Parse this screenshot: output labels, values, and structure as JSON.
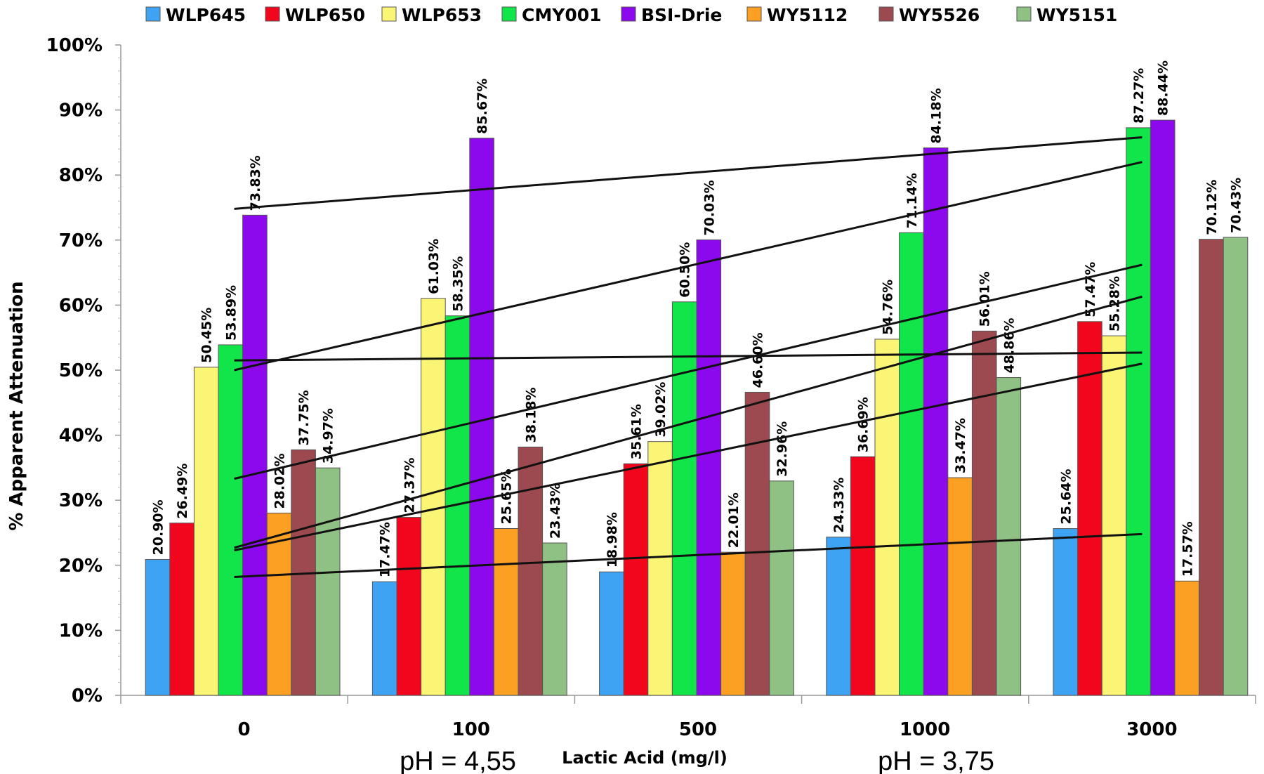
{
  "chart_data": {
    "type": "bar",
    "xlabel": "Lactic Acid (mg/l)",
    "ylabel": "% Apparent Attenuation",
    "ylim": [
      0,
      100
    ],
    "y_ticks": [
      "0%",
      "10%",
      "20%",
      "30%",
      "40%",
      "50%",
      "60%",
      "70%",
      "80%",
      "90%",
      "100%"
    ],
    "grid": false,
    "legend_position": "top",
    "categories": [
      "0",
      "100",
      "500",
      "1000",
      "3000"
    ],
    "series": [
      {
        "name": "WLP645",
        "color": "#3ea3f3",
        "values": [
          20.9,
          17.47,
          18.98,
          24.33,
          25.64
        ],
        "labels": [
          "20.90%",
          "17.47%",
          "18.98%",
          "24.33%",
          "25.64%"
        ]
      },
      {
        "name": "WLP650",
        "color": "#f2061d",
        "values": [
          26.49,
          27.37,
          35.61,
          36.69,
          57.47
        ],
        "labels": [
          "26.49%",
          "27.37%",
          "35.61%",
          "36.69%",
          "57.47%"
        ]
      },
      {
        "name": "WLP653",
        "color": "#fbf575",
        "values": [
          50.45,
          61.03,
          39.02,
          54.76,
          55.28
        ],
        "labels": [
          "50.45%",
          "61.03%",
          "39.02%",
          "54.76%",
          "55.28%"
        ]
      },
      {
        "name": "CMY001",
        "color": "#11e54a",
        "values": [
          53.89,
          58.35,
          60.5,
          71.14,
          87.27
        ],
        "labels": [
          "53.89%",
          "58.35%",
          "60.50%",
          "71.14%",
          "87.27%"
        ]
      },
      {
        "name": "BSI-Drie",
        "color": "#8c09ee",
        "values": [
          73.83,
          85.67,
          70.03,
          84.18,
          88.44
        ],
        "labels": [
          "73.83%",
          "85.67%",
          "70.03%",
          "84.18%",
          "88.44%"
        ]
      },
      {
        "name": "WY5112",
        "color": "#fca024",
        "values": [
          28.02,
          25.65,
          22.01,
          33.47,
          17.57
        ],
        "labels": [
          "28.02%",
          "25.65%",
          "22.01%",
          "33.47%",
          "17.57%"
        ]
      },
      {
        "name": "WY5526",
        "color": "#9c4a50",
        "values": [
          37.75,
          38.18,
          46.6,
          56.01,
          70.12
        ],
        "labels": [
          "37.75%",
          "38.18%",
          "46.60%",
          "56.01%",
          "70.12%"
        ]
      },
      {
        "name": "WY5151",
        "color": "#8fc185",
        "values": [
          34.97,
          23.43,
          32.96,
          48.86,
          70.43
        ],
        "labels": [
          "34.97%",
          "23.43%",
          "32.96%",
          "48.86%",
          "70.43%"
        ]
      }
    ],
    "trendlines": [
      {
        "y_start": 74.8,
        "y_end": 85.8
      },
      {
        "y_start": 50.0,
        "y_end": 82.0
      },
      {
        "y_start": 51.5,
        "y_end": 52.7
      },
      {
        "y_start": 33.3,
        "y_end": 66.2
      },
      {
        "y_start": 22.7,
        "y_end": 61.3
      },
      {
        "y_start": 22.3,
        "y_end": 51.0
      },
      {
        "y_start": 18.2,
        "y_end": 24.8
      }
    ]
  },
  "annotations": {
    "ph_left": "pH = 4,55",
    "ph_right": "pH = 3,75"
  }
}
